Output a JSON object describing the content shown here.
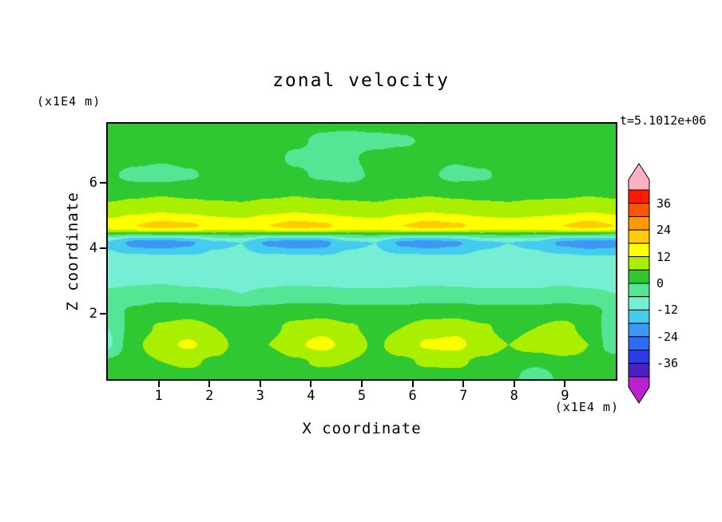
{
  "title": "zonal velocity",
  "timestamp": "t=5.1012e+06",
  "axes": {
    "x_label": "X coordinate",
    "x_unit": "(x1E4 m)",
    "y_label": "Z coordinate",
    "y_unit": "(x1E4 m)",
    "x_ticks": [
      1,
      2,
      3,
      4,
      5,
      6,
      7,
      8,
      9
    ],
    "y_ticks": [
      2,
      4,
      6
    ]
  },
  "colorbar": {
    "labels": [
      36,
      24,
      12,
      0,
      -12,
      -24,
      -36
    ],
    "max": 42,
    "min": -42
  },
  "chart_data": {
    "type": "heatmap",
    "subtype": "filled-contour",
    "title": "zonal velocity",
    "xlabel": "X coordinate",
    "ylabel": "Z coordinate",
    "x_unit": "(x1E4 m)",
    "y_unit": "(x1E4 m)",
    "time_annotation": "t=5.1012e+06",
    "x_range": [
      0,
      10
    ],
    "z_range": [
      0,
      7.8
    ],
    "x_ticks": [
      1,
      2,
      3,
      4,
      5,
      6,
      7,
      8,
      9
    ],
    "z_ticks": [
      2,
      4,
      6
    ],
    "levels": [
      -42,
      -36,
      -30,
      -24,
      -18,
      -12,
      -6,
      0,
      6,
      12,
      18,
      24,
      30,
      36,
      42
    ],
    "band_colors": [
      "#4A1FC8",
      "#2B3BEB",
      "#2F6BFA",
      "#3E96F5",
      "#44CCEE",
      "#76EED4",
      "#55E695",
      "#2FC832",
      "#AAEE00",
      "#FFFF00",
      "#FFCC00",
      "#FF9900",
      "#FF5500",
      "#FF1A00"
    ],
    "under_color": "#BB22CC",
    "over_color": "#FFB0C4",
    "grid": {
      "row_order": "bottom-to-top",
      "nx": 20,
      "nz": 16,
      "values": [
        [
          2,
          3,
          3,
          4,
          3,
          3,
          2,
          3,
          3,
          4,
          4,
          3,
          3,
          4,
          3,
          3,
          -6,
          2,
          3,
          4
        ],
        [
          1,
          4,
          6,
          7,
          5,
          3,
          2,
          5,
          7,
          6,
          4,
          5,
          7,
          7,
          5,
          4,
          2,
          4,
          5,
          4
        ],
        [
          -7,
          5,
          10,
          13,
          9,
          3,
          6,
          11,
          14,
          10,
          5,
          9,
          13,
          14,
          9,
          6,
          9,
          11,
          6,
          -5
        ],
        [
          -6,
          3,
          7,
          9,
          6,
          2,
          4,
          8,
          10,
          7,
          4,
          6,
          9,
          10,
          7,
          4,
          6,
          8,
          4,
          -5
        ],
        [
          -2,
          1,
          3,
          3,
          2,
          1,
          2,
          3,
          3,
          2,
          2,
          2,
          3,
          3,
          2,
          2,
          2,
          3,
          2,
          -2
        ],
        [
          -5,
          -4,
          -3,
          -4,
          -5,
          -6,
          -5,
          -4,
          -4,
          -5,
          -5,
          -5,
          -4,
          -4,
          -5,
          -5,
          -5,
          -4,
          -5,
          -6
        ],
        [
          -9,
          -8,
          -8,
          -9,
          -9,
          -9,
          -8,
          -8,
          -9,
          -9,
          -9,
          -8,
          -8,
          -9,
          -9,
          -9,
          -9,
          -8,
          -9,
          -9
        ],
        [
          -10,
          -9,
          -9,
          -10,
          -10,
          -10,
          -9,
          -9,
          -10,
          -10,
          -10,
          -9,
          -9,
          -10,
          -10,
          -10,
          -10,
          -9,
          -10,
          -10
        ],
        [
          -13,
          -20,
          -21,
          -19,
          -13,
          -12,
          -19,
          -21,
          -20,
          -13,
          -12,
          -19,
          -21,
          -19,
          -13,
          -12,
          -13,
          -19,
          -21,
          -20
        ],
        [
          15,
          18,
          20,
          19,
          16,
          15,
          18,
          20,
          19,
          16,
          15,
          18,
          20,
          19,
          16,
          15,
          16,
          18,
          20,
          18
        ],
        [
          8,
          10,
          11,
          10,
          9,
          8,
          10,
          11,
          10,
          9,
          8,
          10,
          11,
          10,
          9,
          8,
          9,
          10,
          11,
          10
        ],
        [
          3,
          4,
          5,
          4,
          3,
          3,
          4,
          5,
          4,
          3,
          3,
          4,
          5,
          4,
          3,
          3,
          4,
          4,
          5,
          4
        ],
        [
          1,
          -2,
          -3,
          -1,
          2,
          3,
          2,
          1,
          -1,
          -2,
          1,
          2,
          1,
          -2,
          -1,
          2,
          3,
          2,
          1,
          2
        ],
        [
          3,
          2,
          1,
          2,
          3,
          3,
          2,
          -1,
          -2,
          -1,
          2,
          3,
          2,
          1,
          2,
          3,
          3,
          2,
          3,
          3
        ],
        [
          2,
          3,
          4,
          3,
          2,
          2,
          1,
          1,
          -1,
          -2,
          -2,
          -1,
          1,
          2,
          1,
          2,
          3,
          3,
          2,
          2
        ],
        [
          3,
          3,
          3,
          2,
          2,
          3,
          3,
          2,
          1,
          1,
          2,
          2,
          3,
          3,
          2,
          3,
          3,
          3,
          3,
          3
        ]
      ]
    }
  }
}
